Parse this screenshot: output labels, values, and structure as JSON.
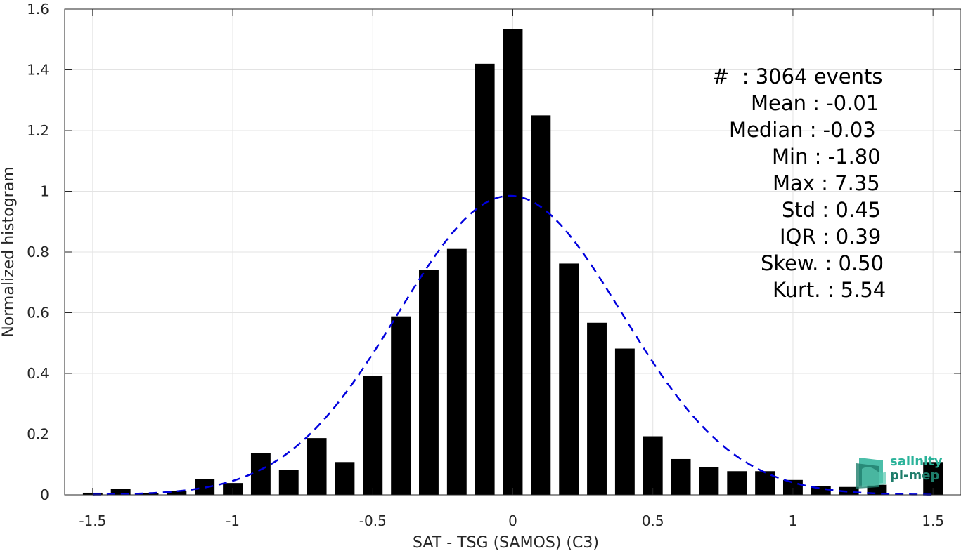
{
  "chart_data": {
    "type": "bar",
    "xlabel": "SAT - TSG (SAMOS) (C3)",
    "ylabel": "Normalized histogram",
    "xlim": [
      -1.6,
      1.6
    ],
    "ylim": [
      0,
      1.6
    ],
    "grid": true,
    "x_ticks": [
      -1.5,
      -1,
      -0.5,
      0,
      0.5,
      1,
      1.5
    ],
    "x_tick_labels": [
      "-1.5",
      "-1",
      "-0.5",
      "0",
      "0.5",
      "1",
      "1.5"
    ],
    "y_ticks": [
      0,
      0.2,
      0.4,
      0.6,
      0.8,
      1,
      1.2,
      1.4,
      1.6
    ],
    "y_tick_labels": [
      "0",
      "0.2",
      "0.4",
      "0.6",
      "0.8",
      "1",
      "1.2",
      "1.4",
      "1.6"
    ],
    "bar_width": 0.07,
    "bar_color": "#000000",
    "bars": {
      "x": [
        -1.5,
        -1.4,
        -1.3,
        -1.2,
        -1.1,
        -1.0,
        -0.9,
        -0.8,
        -0.7,
        -0.6,
        -0.5,
        -0.4,
        -0.3,
        -0.2,
        -0.1,
        0.0,
        0.1,
        0.2,
        0.3,
        0.4,
        0.5,
        0.6,
        0.7,
        0.8,
        0.9,
        1.0,
        1.1,
        1.2,
        1.3,
        1.5
      ],
      "values": [
        0.007,
        0.02,
        0.005,
        0.013,
        0.052,
        0.039,
        0.137,
        0.082,
        0.187,
        0.108,
        0.393,
        0.588,
        0.741,
        0.81,
        1.42,
        1.533,
        1.25,
        0.762,
        0.567,
        0.482,
        0.193,
        0.118,
        0.092,
        0.078,
        0.078,
        0.049,
        0.029,
        0.026,
        0.033,
        0.108
      ]
    },
    "fit_curve": {
      "name": "Gaussian fit",
      "color": "#0000dd",
      "style": "dashed",
      "mean": -0.01,
      "std": 0.4,
      "peak": 0.985
    }
  },
  "stats": {
    "lines": [
      "#  : 3064 events",
      "Mean : -0.01",
      "Median : -0.03",
      "Min : -1.80",
      "Max : 7.35",
      "Std : 0.45",
      "IQR : 0.39",
      "Skew. : 0.50",
      "Kurt. : 5.54"
    ]
  },
  "logo": {
    "line1": "salinity",
    "line2": "pi-mep",
    "color1": "#2bb39a",
    "color2": "#1f7d6b"
  }
}
